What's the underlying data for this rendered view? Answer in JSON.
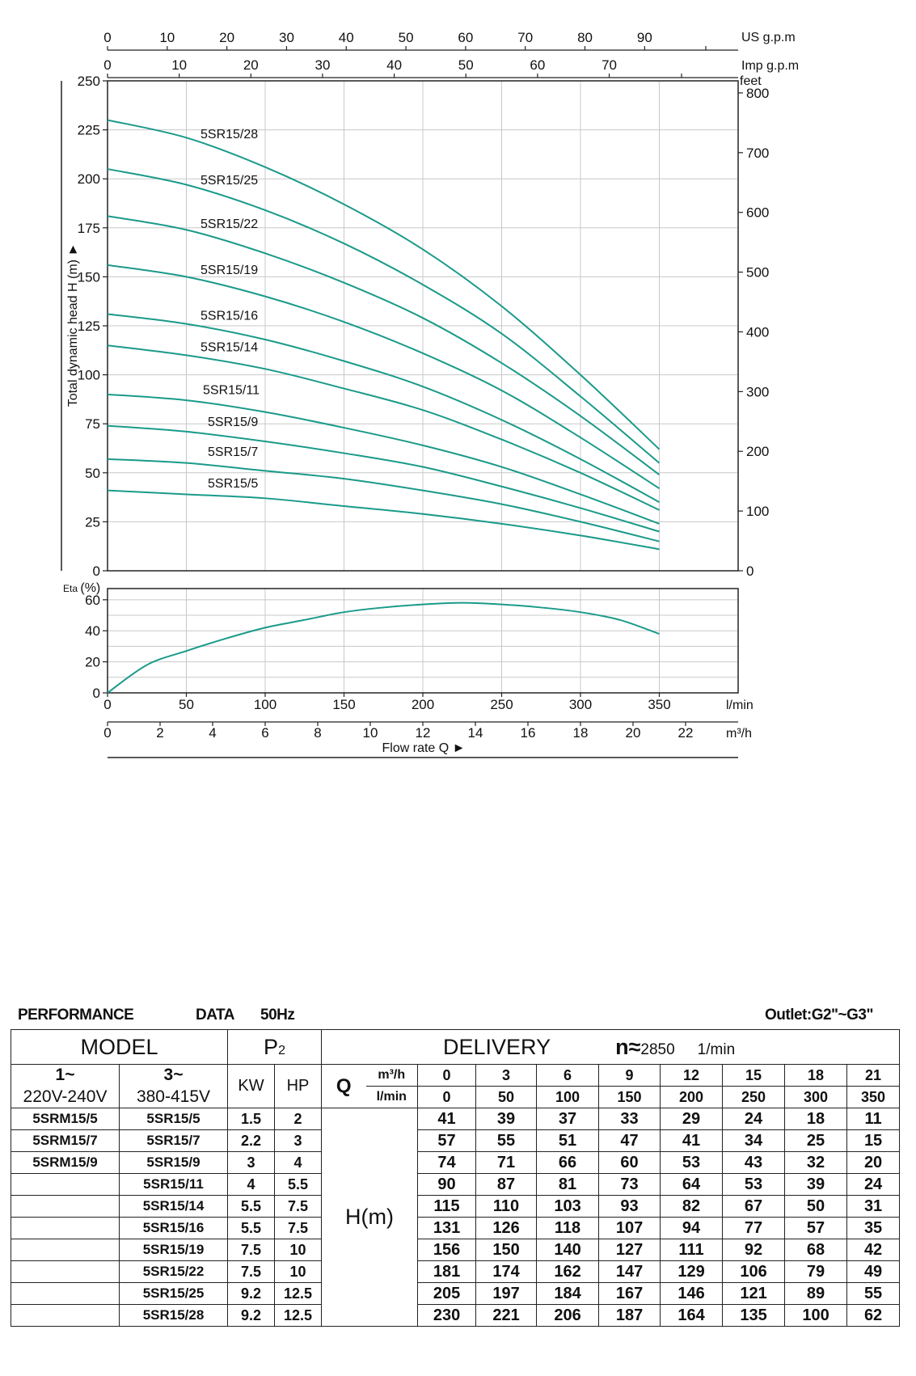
{
  "chart_data": [
    {
      "type": "line",
      "title": "",
      "xlabel": "Flow rate Q ►",
      "ylabel": "Total dynamic head H (m) ►",
      "xlim": [
        0,
        400
      ],
      "ylim": [
        0,
        250
      ],
      "grid": true,
      "x_unit": "l/min",
      "x_ticks": [
        0,
        50,
        100,
        150,
        200,
        250,
        300,
        350
      ],
      "y_ticks": [
        0,
        25,
        50,
        75,
        100,
        125,
        150,
        175,
        200,
        225,
        250
      ],
      "secondary_axes": {
        "us_gpm": {
          "label": "US g.p.m",
          "ticks": [
            0,
            10,
            20,
            30,
            40,
            50,
            60,
            70,
            80,
            90
          ]
        },
        "imp_gpm": {
          "label": "Imp g.p.m",
          "ticks": [
            0,
            10,
            20,
            30,
            40,
            50,
            60,
            70
          ]
        },
        "feet": {
          "label": "feet",
          "ticks": [
            0,
            100,
            200,
            300,
            400,
            500,
            600,
            700,
            800
          ]
        },
        "m3h": {
          "label": "m³/h",
          "ticks": [
            0,
            2,
            4,
            6,
            8,
            10,
            12,
            14,
            16,
            18,
            20,
            22
          ]
        }
      },
      "x": [
        0,
        50,
        100,
        150,
        200,
        250,
        300,
        350
      ],
      "series": [
        {
          "name": "5SR15/28",
          "values": [
            230,
            221,
            206,
            187,
            164,
            135,
            100,
            62
          ]
        },
        {
          "name": "5SR15/25",
          "values": [
            205,
            197,
            184,
            167,
            146,
            121,
            89,
            55
          ]
        },
        {
          "name": "5SR15/22",
          "values": [
            181,
            174,
            162,
            147,
            129,
            106,
            79,
            49
          ]
        },
        {
          "name": "5SR15/19",
          "values": [
            156,
            150,
            140,
            127,
            111,
            92,
            68,
            42
          ]
        },
        {
          "name": "5SR15/16",
          "values": [
            131,
            126,
            118,
            107,
            94,
            77,
            57,
            35
          ]
        },
        {
          "name": "5SR15/14",
          "values": [
            115,
            110,
            103,
            93,
            82,
            67,
            50,
            31
          ]
        },
        {
          "name": "5SR15/11",
          "values": [
            90,
            87,
            81,
            73,
            64,
            53,
            39,
            24
          ]
        },
        {
          "name": "5SR15/9",
          "values": [
            74,
            71,
            66,
            60,
            53,
            43,
            32,
            20
          ]
        },
        {
          "name": "5SR15/7",
          "values": [
            57,
            55,
            51,
            47,
            41,
            34,
            25,
            15
          ]
        },
        {
          "name": "5SR15/5",
          "values": [
            41,
            39,
            37,
            33,
            29,
            24,
            18,
            11
          ]
        }
      ],
      "line_color": "#1a9a8a"
    },
    {
      "type": "line",
      "ylabel": "Eta (%)",
      "xlim": [
        0,
        400
      ],
      "ylim": [
        0,
        70
      ],
      "y_ticks": [
        0,
        20,
        40,
        60
      ],
      "grid": true,
      "x": [
        0,
        25,
        50,
        75,
        100,
        125,
        150,
        175,
        200,
        225,
        250,
        275,
        300,
        325,
        350
      ],
      "series": [
        {
          "values": [
            0,
            18,
            27,
            35,
            42,
            47,
            52,
            55,
            57,
            58,
            57,
            55,
            52,
            47,
            38
          ]
        }
      ],
      "line_color": "#1a9a8a"
    }
  ],
  "table": {
    "header_left": "PERFORMANCE",
    "header_mid": "DATA",
    "header_freq": "50Hz",
    "header_right": "Outlet:G2\"~G3\"",
    "model": "MODEL",
    "p2": "P",
    "p2_sub": "2",
    "delivery": "DELIVERY",
    "n_label": "n≈",
    "n_value": "2850",
    "n_unit": "1/min",
    "phase1_a": "1~",
    "phase1_b": "220V-240V",
    "phase3_a": "3~",
    "phase3_b": "380-415V",
    "kw": "KW",
    "hp": "HP",
    "q": "Q",
    "q_unit1": "m³/h",
    "q_unit2": "l/min",
    "hm": "H(m)",
    "q_m3h": [
      "0",
      "3",
      "6",
      "9",
      "12",
      "15",
      "18",
      "21"
    ],
    "q_lmin": [
      "0",
      "50",
      "100",
      "150",
      "200",
      "250",
      "300",
      "350"
    ],
    "rows": [
      {
        "m1": "5SRM15/5",
        "m3": "5SR15/5",
        "kw": "1.5",
        "hp": "2",
        "h": [
          "41",
          "39",
          "37",
          "33",
          "29",
          "24",
          "18",
          "11"
        ]
      },
      {
        "m1": "5SRM15/7",
        "m3": "5SR15/7",
        "kw": "2.2",
        "hp": "3",
        "h": [
          "57",
          "55",
          "51",
          "47",
          "41",
          "34",
          "25",
          "15"
        ]
      },
      {
        "m1": "5SRM15/9",
        "m3": "5SR15/9",
        "kw": "3",
        "hp": "4",
        "h": [
          "74",
          "71",
          "66",
          "60",
          "53",
          "43",
          "32",
          "20"
        ]
      },
      {
        "m1": "",
        "m3": "5SR15/11",
        "kw": "4",
        "hp": "5.5",
        "h": [
          "90",
          "87",
          "81",
          "73",
          "64",
          "53",
          "39",
          "24"
        ]
      },
      {
        "m1": "",
        "m3": "5SR15/14",
        "kw": "5.5",
        "hp": "7.5",
        "h": [
          "115",
          "110",
          "103",
          "93",
          "82",
          "67",
          "50",
          "31"
        ]
      },
      {
        "m1": "",
        "m3": "5SR15/16",
        "kw": "5.5",
        "hp": "7.5",
        "h": [
          "131",
          "126",
          "118",
          "107",
          "94",
          "77",
          "57",
          "35"
        ]
      },
      {
        "m1": "",
        "m3": "5SR15/19",
        "kw": "7.5",
        "hp": "10",
        "h": [
          "156",
          "150",
          "140",
          "127",
          "111",
          "92",
          "68",
          "42"
        ]
      },
      {
        "m1": "",
        "m3": "5SR15/22",
        "kw": "7.5",
        "hp": "10",
        "h": [
          "181",
          "174",
          "162",
          "147",
          "129",
          "106",
          "79",
          "49"
        ]
      },
      {
        "m1": "",
        "m3": "5SR15/25",
        "kw": "9.2",
        "hp": "12.5",
        "h": [
          "205",
          "197",
          "184",
          "167",
          "146",
          "121",
          "89",
          "55"
        ]
      },
      {
        "m1": "",
        "m3": "5SR15/28",
        "kw": "9.2",
        "hp": "12.5",
        "h": [
          "230",
          "221",
          "206",
          "187",
          "164",
          "135",
          "100",
          "62"
        ]
      }
    ]
  }
}
